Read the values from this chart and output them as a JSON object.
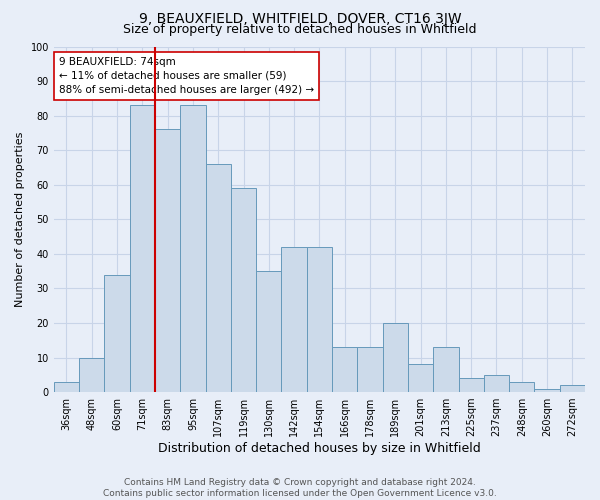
{
  "title": "9, BEAUXFIELD, WHITFIELD, DOVER, CT16 3JW",
  "subtitle": "Size of property relative to detached houses in Whitfield",
  "xlabel": "Distribution of detached houses by size in Whitfield",
  "ylabel": "Number of detached properties",
  "bar_labels": [
    "36sqm",
    "48sqm",
    "60sqm",
    "71sqm",
    "83sqm",
    "95sqm",
    "107sqm",
    "119sqm",
    "130sqm",
    "142sqm",
    "154sqm",
    "166sqm",
    "178sqm",
    "189sqm",
    "201sqm",
    "213sqm",
    "225sqm",
    "237sqm",
    "248sqm",
    "260sqm",
    "272sqm"
  ],
  "bar_values": [
    3,
    10,
    34,
    83,
    76,
    83,
    66,
    59,
    35,
    42,
    42,
    13,
    13,
    20,
    8,
    13,
    4,
    5,
    3,
    1,
    2
  ],
  "bar_color": "#ccdaea",
  "bar_edge_color": "#6699bb",
  "vline_color": "#cc0000",
  "annotation_text": "9 BEAUXFIELD: 74sqm\n← 11% of detached houses are smaller (59)\n88% of semi-detached houses are larger (492) →",
  "annotation_box_color": "#ffffff",
  "annotation_box_edge": "#cc0000",
  "ylim": [
    0,
    100
  ],
  "yticks": [
    0,
    10,
    20,
    30,
    40,
    50,
    60,
    70,
    80,
    90,
    100
  ],
  "grid_color": "#c8d4e8",
  "footer_line1": "Contains HM Land Registry data © Crown copyright and database right 2024.",
  "footer_line2": "Contains public sector information licensed under the Open Government Licence v3.0.",
  "title_fontsize": 10,
  "subtitle_fontsize": 9,
  "xlabel_fontsize": 9,
  "ylabel_fontsize": 8,
  "tick_fontsize": 7,
  "annotation_fontsize": 7.5,
  "footer_fontsize": 6.5,
  "bg_color": "#e8eef8"
}
